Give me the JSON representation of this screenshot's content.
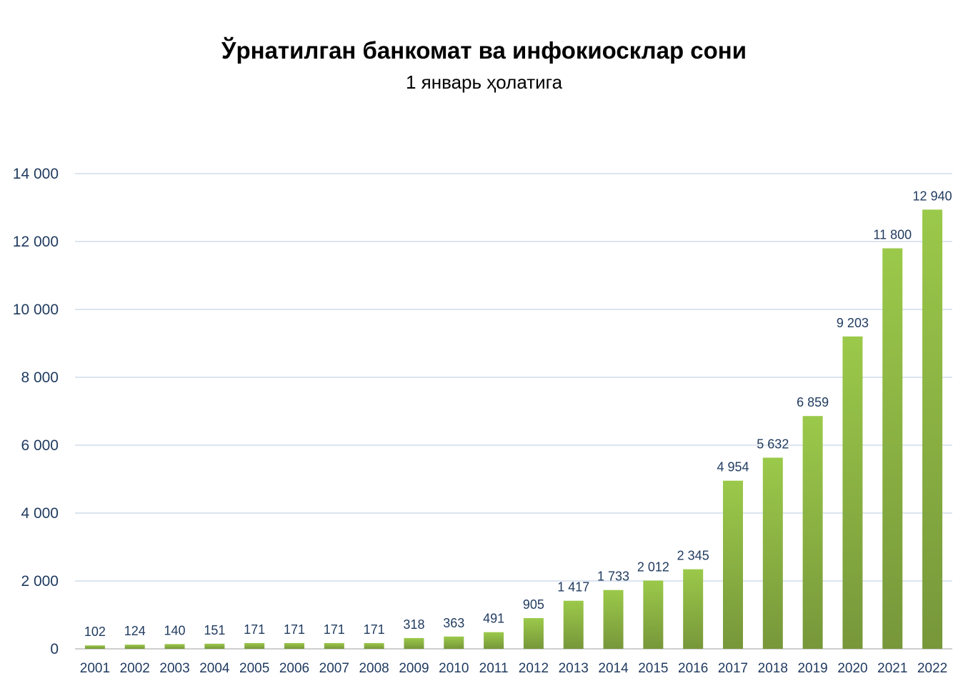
{
  "chart_data": {
    "type": "bar",
    "title": "Ўрнатилган банкомат ва инфокиосклар сони",
    "subtitle": "1 январь ҳолатига",
    "xlabel": "",
    "ylabel": "",
    "ylim": [
      0,
      14000
    ],
    "yticks": [
      0,
      2000,
      4000,
      6000,
      8000,
      10000,
      12000,
      14000
    ],
    "ytick_labels": [
      "0",
      "2 000",
      "4 000",
      "6 000",
      "8 000",
      "10 000",
      "12 000",
      "14 000"
    ],
    "grid": true,
    "legend": "none",
    "categories": [
      "2001",
      "2002",
      "2003",
      "2004",
      "2005",
      "2006",
      "2007",
      "2008",
      "2009",
      "2010",
      "2011",
      "2012",
      "2013",
      "2014",
      "2015",
      "2016",
      "2017",
      "2018",
      "2019",
      "2020",
      "2021",
      "2022"
    ],
    "values": [
      102,
      124,
      140,
      151,
      171,
      171,
      171,
      171,
      318,
      363,
      491,
      905,
      1417,
      1733,
      2012,
      2345,
      4954,
      5632,
      6859,
      9203,
      11800,
      12940
    ],
    "data_labels": [
      "102",
      "124",
      "140",
      "151",
      "171",
      "171",
      "171",
      "171",
      "318",
      "363",
      "491",
      "905",
      "1 417",
      "1 733",
      "2 012",
      "2 345",
      "4 954",
      "5 632",
      "6 859",
      "9 203",
      "11 800",
      "12 940"
    ],
    "colors": {
      "bar_top": "#9bc94a",
      "bar_bottom": "#77973a",
      "grid": "#d0dcea",
      "axis": "#bfbfbf",
      "text": "#1f3a5f"
    }
  }
}
